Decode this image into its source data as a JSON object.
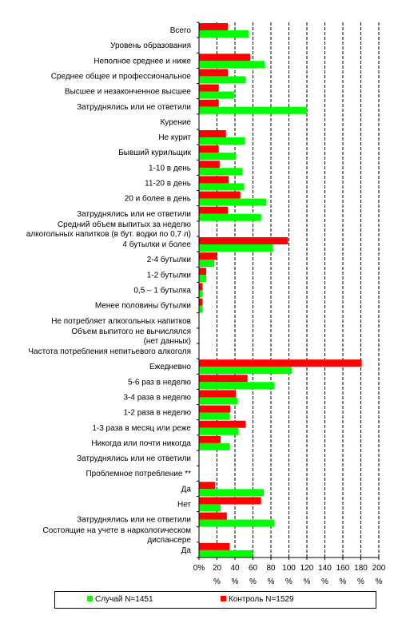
{
  "chart_data": {
    "type": "bar",
    "orientation": "horizontal",
    "categories": [
      "Всего",
      "Уровень образования",
      "Неполное среднее и ниже",
      "Среднее общее и профессиональное",
      "Высшее и незаконченное высшее",
      "Затруднялись или не ответили",
      "Курение",
      "Не курит",
      "Бывший курильщик",
      "1-10 в день",
      "11-20 в день",
      "20 и более в день",
      "Затруднялись или не ответили",
      "Средний объем выпитых за неделю алкогольных напитков (в бут. водки по 0,7 л)",
      "4 бутылки и более",
      "2-4 бутылки",
      "1-2 бутылки",
      "0,5 – 1 бутылка",
      "Менее половины бутылки",
      "Не потребляет алкогольных напитков",
      "Объем выпитого не вычислялся (нет данных)",
      "Частота потребления непитьевого алкоголя",
      "Ежедневно",
      "5-6 раз в неделю",
      "3-4 раза в неделю",
      "1-2 раза в неделю",
      "1-3 раза в месяц или реже",
      "Никогда или почти никогда",
      "Затруднялись или не ответили",
      "Проблемное потребление **",
      "Да",
      "Нет",
      "Затруднялись или не ответили",
      "Состоящие на учете в наркологическом диспансере",
      "Да"
    ],
    "category_lines": [
      [
        "Всего"
      ],
      [
        "Уровень образования"
      ],
      [
        "Неполное среднее и ниже"
      ],
      [
        "Среднее общее и профессиональное"
      ],
      [
        "Высшее и незаконченное высшее"
      ],
      [
        "Затруднялись или не ответили"
      ],
      [
        "Курение"
      ],
      [
        "Не курит"
      ],
      [
        "Бывший курильщик"
      ],
      [
        "1-10 в день"
      ],
      [
        "11-20 в день"
      ],
      [
        "20 и более в день"
      ],
      [
        "Затруднялись или не ответили"
      ],
      [
        "Средний объем выпитых за неделю",
        "алкогольных напитков (в бут. водки по 0,7 л)"
      ],
      [
        "4 бутылки и более"
      ],
      [
        "2-4 бутылки"
      ],
      [
        "1-2 бутылки"
      ],
      [
        "0,5 – 1 бутылка"
      ],
      [
        "Менее половины бутылки"
      ],
      [
        "Не потребляет алкогольных напитков"
      ],
      [
        "Объем выпитого не вычислялся",
        "(нет данных)"
      ],
      [
        "Частота потребления непитьевого алкоголя"
      ],
      [
        "Ежедневно"
      ],
      [
        "5-6 раз в неделю"
      ],
      [
        "3-4 раза в неделю"
      ],
      [
        "1-2 раза в неделю"
      ],
      [
        "1-3 раза в месяц или реже"
      ],
      [
        "Никогда или почти никогда"
      ],
      [
        "Затруднялись или не ответили"
      ],
      [
        "Проблемное потребление **"
      ],
      [
        "Да"
      ],
      [
        "Нет"
      ],
      [
        "Затруднялись или не ответили"
      ],
      [
        "Состоящие на учете в наркологическом",
        "диспансере"
      ],
      [
        "Да"
      ]
    ],
    "series": [
      {
        "name": "Контроль N=1529",
        "color": "#ff0000",
        "values": [
          32,
          null,
          57,
          32,
          22,
          22,
          null,
          30,
          22,
          23,
          33,
          46,
          32,
          null,
          99,
          20,
          8,
          4,
          4,
          null,
          null,
          null,
          181,
          54,
          41,
          35,
          52,
          24,
          null,
          null,
          18,
          69,
          31,
          null,
          34
        ]
      },
      {
        "name": "Случай N=1451",
        "color": "#00ff00",
        "values": [
          55,
          null,
          73,
          52,
          39,
          120,
          null,
          51,
          41,
          48,
          50,
          75,
          69,
          null,
          82,
          17,
          8,
          4,
          4,
          null,
          null,
          null,
          103,
          84,
          43,
          34,
          44,
          34,
          null,
          null,
          72,
          24,
          84,
          null,
          60
        ]
      }
    ],
    "x_ticks": [
      "0%",
      "20",
      "40",
      "60",
      "80",
      "100",
      "120",
      "140",
      "160",
      "180",
      "200"
    ],
    "x_unit": "%",
    "xlim": [
      0,
      200
    ],
    "grid": "vertical dashed",
    "legend": {
      "placement": "bottom",
      "items": [
        {
          "label": "Случай N=1451",
          "color": "#00ff00"
        },
        {
          "label": "Контроль N=1529",
          "color": "#ff0000"
        }
      ]
    }
  }
}
